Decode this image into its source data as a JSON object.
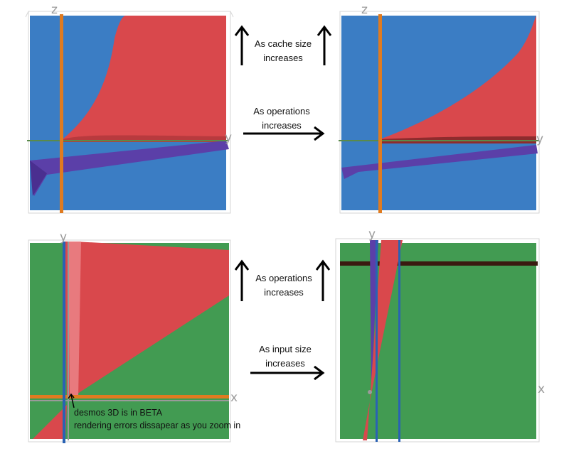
{
  "colors": {
    "blue": "#3b7dc4",
    "green": "#429b52",
    "red": "#d9484c",
    "purple": "#5b3fa8",
    "orange": "#e07b20",
    "axis_blue": "#2a62b3",
    "axis_gray": "#9a9a9a",
    "dark_band": "#3a1a10"
  },
  "panels": {
    "top_left": {
      "axis_top": "z",
      "axis_right": "y"
    },
    "top_right": {
      "axis_top": "z",
      "axis_right": "y"
    },
    "bottom_left": {
      "axis_top": "y",
      "axis_right": "x"
    },
    "bottom_right": {
      "axis_top": "y",
      "axis_right": "x"
    }
  },
  "captions": {
    "top_up": {
      "line1": "As cache size",
      "line2": "increases"
    },
    "top_right": {
      "line1": "As operations",
      "line2": "increases"
    },
    "bottom_up": {
      "line1": "As operations",
      "line2": "increases"
    },
    "bottom_right": {
      "line1": "As input size",
      "line2": "increases"
    }
  },
  "note": {
    "line1": "desmos 3D is in BETA",
    "line2": "rendering errors dissapear as you zoom in"
  }
}
